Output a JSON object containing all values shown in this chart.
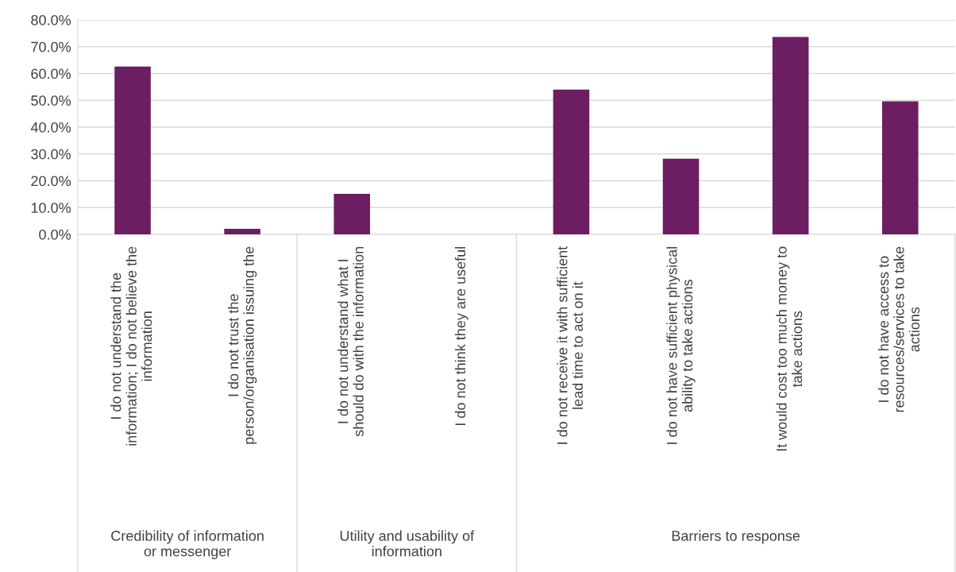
{
  "chart_data": {
    "type": "bar",
    "categories": [
      "I do not understand the\ninformation; I do not believe the\ninformation",
      "I do not trust the\nperson/organisation issuing the",
      "I do not understand what I\nshould do with the information",
      "I do not think they are useful",
      "I do not receive it with sufficient\nlead time to act on it",
      "I do not have sufficient physical\nability to take actions",
      "It would cost too much money to\ntake actions",
      "I do not have access to\nresources/services to take\nactions"
    ],
    "values": [
      0.626,
      0.021,
      0.151,
      0,
      0.54,
      0.282,
      0.736,
      0.496
    ],
    "color": "#6d1d62",
    "ylim": [
      0,
      0.8
    ],
    "yticks": [
      {
        "value": 0,
        "label": "0.0%"
      },
      {
        "value": 0.1,
        "label": "10.0%"
      },
      {
        "value": 0.2,
        "label": "20.0%"
      },
      {
        "value": 0.3,
        "label": "30.0%"
      },
      {
        "value": 0.4,
        "label": "40.0%"
      },
      {
        "value": 0.5,
        "label": "50.0%"
      },
      {
        "value": 0.6,
        "label": "60.0%"
      },
      {
        "value": 0.7,
        "label": "70.0%"
      },
      {
        "value": 0.8,
        "label": "80.0%"
      }
    ],
    "grid": "y",
    "legend": false,
    "annotations": [
      "Credibility of information\nor messenger",
      "Utility and usability of\ninformation",
      "Barriers to response"
    ]
  }
}
